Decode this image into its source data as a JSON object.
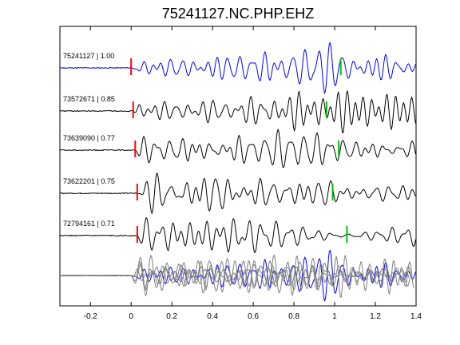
{
  "chart_data": {
    "type": "line",
    "title": "75241127.NC.PHP.EHZ",
    "xlabel": "",
    "ylabel": "",
    "xlim": [
      -0.35,
      1.4
    ],
    "xticks": [
      -0.2,
      0,
      0.2,
      0.4,
      0.6,
      0.8,
      1,
      1.2,
      1.4
    ],
    "xtick_labels": [
      "-0.2",
      "0",
      "0.2",
      "0.4",
      "0.6",
      "0.8",
      "1",
      "1.2",
      "1.4"
    ],
    "grid": false,
    "traces": [
      {
        "label": "75241127 | 1.00",
        "color": "#0000ff",
        "p_pick": 0.0,
        "s_pick": 1.03
      },
      {
        "label": "73572671 | 0.85",
        "color": "#000000",
        "p_pick": 0.01,
        "s_pick": 0.96
      },
      {
        "label": "73639090 | 0.77",
        "color": "#000000",
        "p_pick": 0.02,
        "s_pick": 1.02
      },
      {
        "label": "73622201 | 0.75",
        "color": "#000000",
        "p_pick": 0.03,
        "s_pick": 0.99
      },
      {
        "label": "72794161 | 0.71",
        "color": "#000000",
        "p_pick": 0.03,
        "s_pick": 1.06
      }
    ],
    "stack": {
      "colors": [
        "#808080",
        "#0000ff"
      ]
    },
    "pick_colors": {
      "p": "#ff0000",
      "s": "#00c000"
    }
  }
}
